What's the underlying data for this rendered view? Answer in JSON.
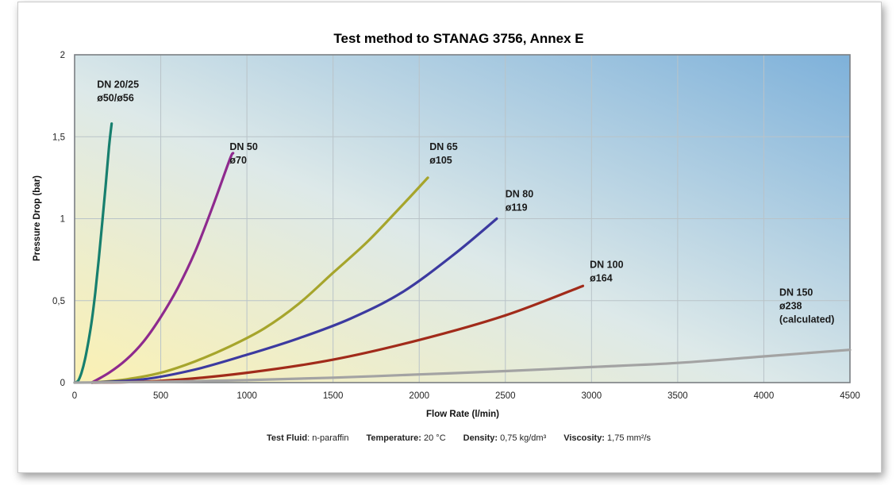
{
  "chart_data": {
    "type": "line",
    "title": "Test method to STANAG 3756, Annex E",
    "xlabel": "Flow Rate (l/min)",
    "ylabel": "Pressure Drop (bar)",
    "xlim": [
      0,
      4500
    ],
    "ylim": [
      0,
      2
    ],
    "x_ticks": [
      0,
      500,
      1000,
      1500,
      2000,
      2500,
      3000,
      3500,
      4000,
      4500
    ],
    "y_ticks": [
      0,
      0.5,
      1,
      1.5,
      2
    ],
    "x_tick_labels": [
      "0",
      "500",
      "1000",
      "1500",
      "2000",
      "2500",
      "3000",
      "3500",
      "4000",
      "4500"
    ],
    "y_tick_labels": [
      "0",
      "0,5",
      "1",
      "1,5",
      "2"
    ],
    "grid": true,
    "series": [
      {
        "name": "DN 20/25 ø50/ø56",
        "label_lines": [
          "DN 20/25",
          "ø50/ø56"
        ],
        "color": "#177f6e",
        "x": [
          0,
          20,
          40,
          60,
          80,
          100,
          120,
          140,
          160,
          180,
          200,
          215
        ],
        "y": [
          0,
          0.01,
          0.06,
          0.14,
          0.25,
          0.38,
          0.55,
          0.75,
          0.97,
          1.2,
          1.44,
          1.58
        ]
      },
      {
        "name": "DN 50 ø70",
        "label_lines": [
          "DN 50",
          "ø70"
        ],
        "color": "#8e2a8e",
        "x": [
          100,
          200,
          300,
          400,
          500,
          600,
          700,
          800,
          900,
          920
        ],
        "y": [
          0,
          0.06,
          0.14,
          0.25,
          0.4,
          0.58,
          0.8,
          1.07,
          1.36,
          1.4
        ]
      },
      {
        "name": "DN 65 ø105",
        "label_lines": [
          "DN 65",
          "ø105"
        ],
        "color": "#a6a52c",
        "x": [
          100,
          300,
          500,
          700,
          900,
          1100,
          1300,
          1500,
          1700,
          1900,
          2050
        ],
        "y": [
          0,
          0.02,
          0.06,
          0.13,
          0.22,
          0.33,
          0.48,
          0.67,
          0.86,
          1.08,
          1.25
        ]
      },
      {
        "name": "DN 80 ø119",
        "label_lines": [
          "DN 80",
          "ø119"
        ],
        "color": "#3c3aa0",
        "x": [
          100,
          400,
          700,
          1000,
          1300,
          1600,
          1900,
          2200,
          2450
        ],
        "y": [
          0,
          0.02,
          0.08,
          0.17,
          0.27,
          0.39,
          0.55,
          0.78,
          1.0
        ]
      },
      {
        "name": "DN 100 ø164",
        "label_lines": [
          "DN 100",
          "ø164"
        ],
        "color": "#a12b1a",
        "x": [
          100,
          500,
          1000,
          1500,
          2000,
          2500,
          2950
        ],
        "y": [
          0,
          0.01,
          0.06,
          0.14,
          0.26,
          0.41,
          0.59
        ]
      },
      {
        "name": "DN 150 ø238 (calculated)",
        "label_lines": [
          "DN 150",
          "ø238",
          "(calculated)"
        ],
        "color": "#a3a3a3",
        "x": [
          0,
          500,
          1000,
          1500,
          2000,
          2500,
          3000,
          3500,
          4000,
          4500
        ],
        "y": [
          0,
          0.005,
          0.015,
          0.03,
          0.05,
          0.07,
          0.095,
          0.12,
          0.16,
          0.2
        ]
      }
    ]
  },
  "footnote": {
    "fluid_label": "Test Fluid",
    "fluid_value": ": n-paraffin",
    "temperature_label": "Temperature:",
    "temperature_value": " 20 °C",
    "density_label": "Density:",
    "density_value": " 0,75 kg/dm³",
    "viscosity_label": "Viscosity:",
    "viscosity_value": " 1,75 mm²/s"
  }
}
